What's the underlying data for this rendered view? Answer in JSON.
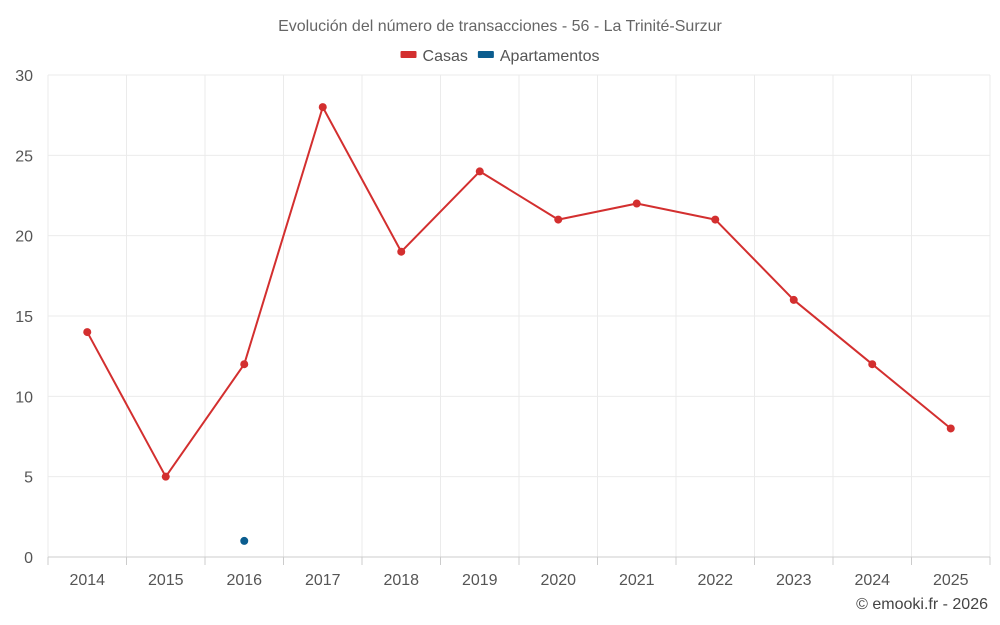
{
  "chart_data": {
    "type": "line",
    "title": "Evolución del número de transacciones - 56 - La Trinité-Surzur",
    "categories": [
      "2014",
      "2015",
      "2016",
      "2017",
      "2018",
      "2019",
      "2020",
      "2021",
      "2022",
      "2023",
      "2024",
      "2025"
    ],
    "series": [
      {
        "name": "Casas",
        "color": "#d32f2f",
        "values": [
          14,
          5,
          12,
          28,
          19,
          24,
          21,
          22,
          21,
          16,
          12,
          8
        ]
      },
      {
        "name": "Apartamentos",
        "color": "#0b5d8f",
        "values": [
          null,
          null,
          1,
          null,
          null,
          null,
          null,
          null,
          null,
          null,
          null,
          null
        ]
      }
    ],
    "ylim": [
      0,
      30
    ],
    "yticks": [
      0,
      5,
      10,
      15,
      20,
      25,
      30
    ],
    "grid": true,
    "legend_position": "top-center",
    "credit": "© emooki.fr - 2026"
  }
}
